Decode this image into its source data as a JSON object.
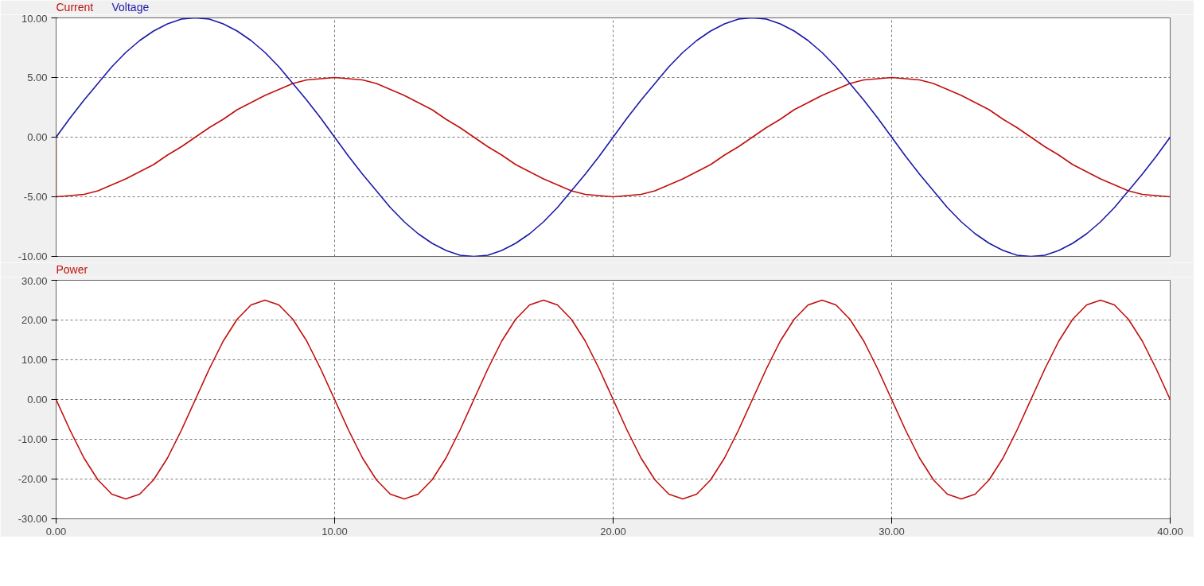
{
  "chart_data": [
    {
      "type": "line",
      "tick_labels": "y",
      "grid": true,
      "marker": "none",
      "line_style": "solid",
      "x": [
        0,
        0.5,
        1,
        1.5,
        2,
        2.5,
        3,
        3.5,
        4,
        4.5,
        5,
        5.5,
        6,
        6.5,
        7,
        7.5,
        8,
        8.5,
        9,
        9.5,
        10,
        10.5,
        11,
        11.5,
        12,
        12.5,
        13,
        13.5,
        14,
        14.5,
        15,
        15.5,
        16,
        16.5,
        17,
        17.5,
        18,
        18.5,
        19,
        19.5,
        20,
        20.5,
        21,
        21.5,
        22,
        22.5,
        23,
        23.5,
        24,
        24.5,
        25,
        25.5,
        26,
        26.5,
        27,
        27.5,
        28,
        28.5,
        29,
        29.5,
        30,
        30.5,
        31,
        31.5,
        32,
        32.5,
        33,
        33.5,
        34,
        34.5,
        35,
        35.5,
        36,
        36.5,
        37,
        37.5,
        38,
        38.5,
        39,
        39.5,
        40
      ],
      "xlim": [
        0,
        40
      ],
      "xticks": [
        0,
        10,
        20,
        30,
        40
      ],
      "ylim": [
        -10,
        10
      ],
      "yticks": [
        {
          "value": -10,
          "label": "-10.00"
        },
        {
          "value": -5,
          "label": "-5.00"
        },
        {
          "value": 0,
          "label": "0.00"
        },
        {
          "value": 5,
          "label": "5.00"
        },
        {
          "value": 10,
          "label": "10.00"
        }
      ],
      "series": [
        {
          "name": "Current",
          "color": "#c0100c",
          "x": [
            0,
            0,
            0.5,
            1,
            1.5,
            2,
            2.5,
            3,
            3.5,
            4,
            4.5,
            5,
            5.5,
            6,
            6.5,
            7,
            7.5,
            8,
            8.5,
            9,
            9.5,
            10,
            10.5,
            11,
            11.5,
            12,
            12.5,
            13,
            13.5,
            14,
            14.5,
            15,
            15.5,
            16,
            16.5,
            17,
            17.5,
            18,
            18.5,
            19,
            19.5,
            20,
            20.5,
            21,
            21.5,
            22,
            22.5,
            23,
            23.5,
            24,
            24.5,
            25,
            25.5,
            26,
            26.5,
            27,
            27.5,
            28,
            28.5,
            29,
            29.5,
            30,
            30.5,
            31,
            31.5,
            32,
            32.5,
            33,
            33.5,
            34,
            34.5,
            35,
            35.5,
            36,
            36.5,
            37,
            37.5,
            38,
            38.5,
            39,
            39.5,
            40
          ],
          "values": [
            0,
            -5,
            -4.9,
            -4.8,
            -4.5,
            -4,
            -3.5,
            -2.9,
            -2.3,
            -1.5,
            -0.8,
            0,
            0.8,
            1.5,
            2.3,
            2.9,
            3.5,
            4,
            4.5,
            4.8,
            4.9,
            5,
            4.9,
            4.8,
            4.5,
            4,
            3.5,
            2.9,
            2.3,
            1.5,
            0.8,
            0,
            -0.8,
            -1.5,
            -2.3,
            -2.9,
            -3.5,
            -4,
            -4.5,
            -4.8,
            -4.9,
            -5,
            -4.9,
            -4.8,
            -4.5,
            -4,
            -3.5,
            -2.9,
            -2.3,
            -1.5,
            -0.8,
            0,
            0.8,
            1.5,
            2.3,
            2.9,
            3.5,
            4,
            4.5,
            4.8,
            4.9,
            5,
            4.9,
            4.8,
            4.5,
            4,
            3.5,
            2.9,
            2.3,
            1.5,
            0.8,
            0,
            -0.8,
            -1.5,
            -2.3,
            -2.9,
            -3.5,
            -4,
            -4.5,
            -4.8,
            -4.9,
            -5
          ]
        },
        {
          "name": "Voltage",
          "color": "#1a1aa8",
          "values": [
            0,
            1.6,
            3.1,
            4.5,
            5.9,
            7.1,
            8.1,
            8.9,
            9.5,
            9.9,
            10,
            9.9,
            9.5,
            8.9,
            8.1,
            7.1,
            5.9,
            4.5,
            3.1,
            1.6,
            0,
            -1.6,
            -3.1,
            -4.5,
            -5.9,
            -7.1,
            -8.1,
            -8.9,
            -9.5,
            -9.9,
            -10,
            -9.9,
            -9.5,
            -8.9,
            -8.1,
            -7.1,
            -5.9,
            -4.5,
            -3.1,
            -1.6,
            0,
            1.6,
            3.1,
            4.5,
            5.9,
            7.1,
            8.1,
            8.9,
            9.5,
            9.9,
            10,
            9.9,
            9.5,
            8.9,
            8.1,
            7.1,
            5.9,
            4.5,
            3.1,
            1.6,
            0,
            -1.6,
            -3.1,
            -4.5,
            -5.9,
            -7.1,
            -8.1,
            -8.9,
            -9.5,
            -9.9,
            -10,
            -9.9,
            -9.5,
            -8.9,
            -8.1,
            -7.1,
            -5.9,
            -4.5,
            -3.1,
            -1.6,
            0
          ]
        }
      ]
    },
    {
      "type": "line",
      "grid": true,
      "marker": "none",
      "line_style": "solid",
      "x": [
        0,
        0.5,
        1,
        1.5,
        2,
        2.5,
        3,
        3.5,
        4,
        4.5,
        5,
        5.5,
        6,
        6.5,
        7,
        7.5,
        8,
        8.5,
        9,
        9.5,
        10,
        10.5,
        11,
        11.5,
        12,
        12.5,
        13,
        13.5,
        14,
        14.5,
        15,
        15.5,
        16,
        16.5,
        17,
        17.5,
        18,
        18.5,
        19,
        19.5,
        20,
        20.5,
        21,
        21.5,
        22,
        22.5,
        23,
        23.5,
        24,
        24.5,
        25,
        25.5,
        26,
        26.5,
        27,
        27.5,
        28,
        28.5,
        29,
        29.5,
        30,
        30.5,
        31,
        31.5,
        32,
        32.5,
        33,
        33.5,
        34,
        34.5,
        35,
        35.5,
        36,
        36.5,
        37,
        37.5,
        38,
        38.5,
        39,
        39.5,
        40
      ],
      "xlim": [
        0,
        40
      ],
      "xticks": [
        {
          "value": 0,
          "label": "0.00"
        },
        {
          "value": 10,
          "label": "10.00"
        },
        {
          "value": 20,
          "label": "20.00"
        },
        {
          "value": 30,
          "label": "30.00"
        },
        {
          "value": 40,
          "label": "40.00"
        }
      ],
      "ylim": [
        -30,
        30
      ],
      "yticks": [
        {
          "value": -30,
          "label": "-30.00"
        },
        {
          "value": -20,
          "label": "-20.00"
        },
        {
          "value": -10,
          "label": "-10.00"
        },
        {
          "value": 0,
          "label": "0.00"
        },
        {
          "value": 10,
          "label": "10.00"
        },
        {
          "value": 20,
          "label": "20.00"
        },
        {
          "value": 30,
          "label": "30.00"
        }
      ],
      "series": [
        {
          "name": "Power",
          "color": "#c0100c",
          "values": [
            0,
            -7.7,
            -14.7,
            -20.2,
            -23.8,
            -25,
            -23.8,
            -20.2,
            -14.7,
            -7.7,
            0,
            7.7,
            14.7,
            20.2,
            23.8,
            25,
            23.8,
            20.2,
            14.7,
            7.7,
            0,
            -7.7,
            -14.7,
            -20.2,
            -23.8,
            -25,
            -23.8,
            -20.2,
            -14.7,
            -7.7,
            0,
            7.7,
            14.7,
            20.2,
            23.8,
            25,
            23.8,
            20.2,
            14.7,
            7.7,
            0,
            -7.7,
            -14.7,
            -20.2,
            -23.8,
            -25,
            -23.8,
            -20.2,
            -14.7,
            -7.7,
            0,
            7.7,
            14.7,
            20.2,
            23.8,
            25,
            23.8,
            20.2,
            14.7,
            7.7,
            0,
            -7.7,
            -14.7,
            -20.2,
            -23.8,
            -25,
            -23.8,
            -20.2,
            -14.7,
            -7.7,
            0,
            7.7,
            14.7,
            20.2,
            23.8,
            25,
            23.8,
            20.2,
            14.7,
            7.7,
            0
          ]
        }
      ]
    }
  ]
}
